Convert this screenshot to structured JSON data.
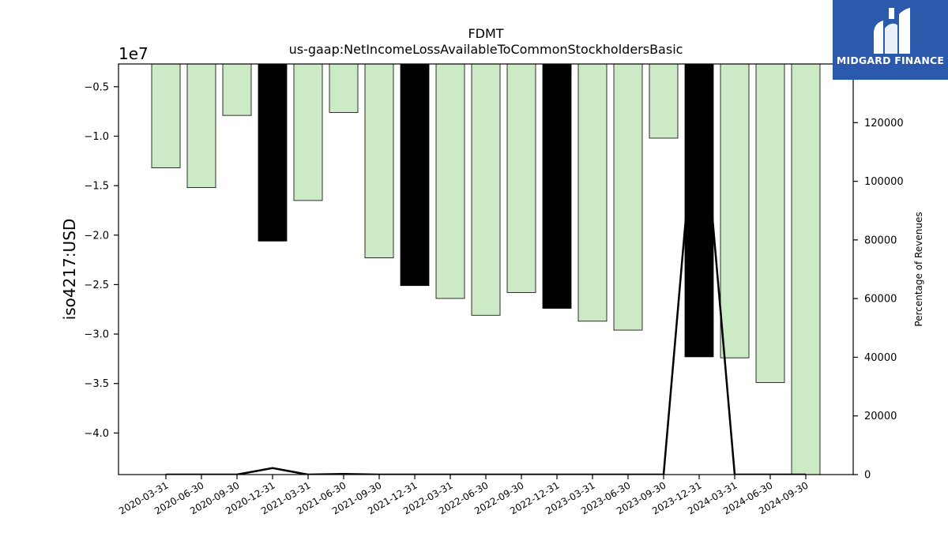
{
  "logo": {
    "text": "MIDGARD FINANCE"
  },
  "chart_data": {
    "type": "bar",
    "title": "FDMT",
    "subtitle": "us-gaap:NetIncomeLossAvailableToCommonStockholdersBasic",
    "ylabel": "iso4217:USD",
    "y_offset_label": "1e7",
    "y2label": "Percentage of Revenues",
    "ylim": [
      -4.42,
      -0.27
    ],
    "y_ticks": [
      -0.5,
      -1.0,
      -1.5,
      -2.0,
      -2.5,
      -3.0,
      -3.5,
      -4.0
    ],
    "y_tick_labels": [
      "−0.5",
      "−1.0",
      "−1.5",
      "−2.0",
      "−2.5",
      "−3.0",
      "−3.5",
      "−4.0"
    ],
    "y2lim": [
      0,
      140000
    ],
    "y2_ticks": [
      0,
      20000,
      40000,
      60000,
      80000,
      100000,
      120000
    ],
    "categories": [
      "2020-03-31",
      "2020-06-30",
      "2020-09-30",
      "2020-12-31",
      "2021-03-31",
      "2021-06-30",
      "2021-09-30",
      "2021-12-31",
      "2022-03-31",
      "2022-06-30",
      "2022-09-30",
      "2022-12-31",
      "2023-03-31",
      "2023-06-30",
      "2023-09-30",
      "2023-12-31",
      "2024-03-31",
      "2024-06-30",
      "2024-09-30"
    ],
    "values": [
      -1.32,
      -1.52,
      -0.79,
      -2.06,
      -1.65,
      -0.76,
      -2.23,
      -2.51,
      -2.64,
      -2.81,
      -2.58,
      -2.74,
      -2.87,
      -2.96,
      -1.02,
      -3.23,
      -3.24,
      -3.49,
      -4.42
    ],
    "highlight": [
      false,
      false,
      false,
      true,
      false,
      false,
      false,
      true,
      false,
      false,
      false,
      true,
      false,
      false,
      false,
      true,
      false,
      false,
      false
    ],
    "bar_color": "#cdeac6",
    "highlight_color": "#000000",
    "line_series": {
      "name": "Percentage of Revenues",
      "values": [
        0,
        0,
        0,
        2200,
        0,
        200,
        0,
        0,
        0,
        0,
        0,
        0,
        0,
        0,
        0,
        140000,
        0,
        0,
        0
      ],
      "color": "#000000"
    },
    "grid": false,
    "legend": "none"
  }
}
